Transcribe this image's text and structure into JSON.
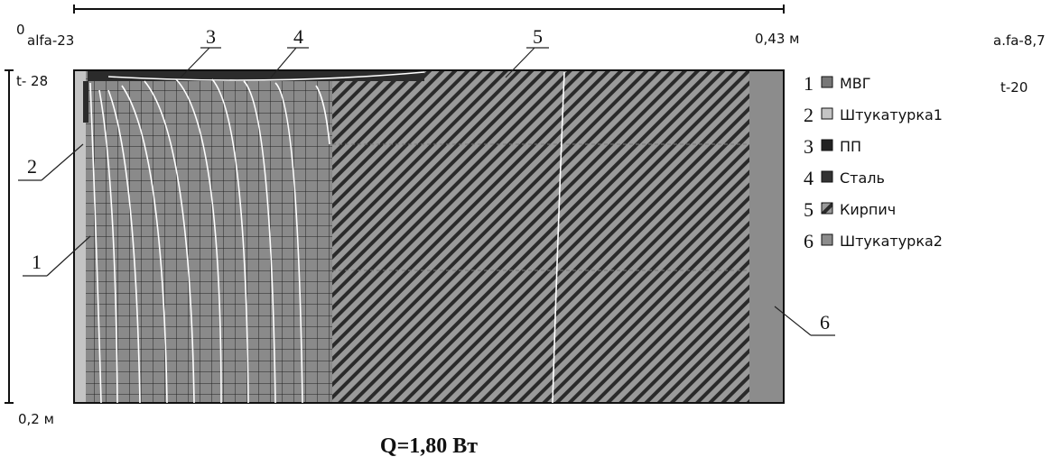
{
  "scale": {
    "origin": "0",
    "length": "0,43 м",
    "height": "0,2 м"
  },
  "boundary": {
    "left_alfa": "alfa-23",
    "right_alfa": "a.fa-8,7",
    "left_t": "t- 28",
    "right_t": "t-20"
  },
  "callouts": [
    "1",
    "2",
    "3",
    "4",
    "5",
    "6"
  ],
  "legend": [
    {
      "number": "1",
      "label": "МВГ"
    },
    {
      "number": "2",
      "label": "Штукатурка1"
    },
    {
      "number": "3",
      "label": "ПП"
    },
    {
      "number": "4",
      "label": "Сталь"
    },
    {
      "number": "5",
      "label": "Кирпич"
    },
    {
      "number": "6",
      "label": "Штукатурка2"
    }
  ],
  "result": "Q=1,80 Вт"
}
